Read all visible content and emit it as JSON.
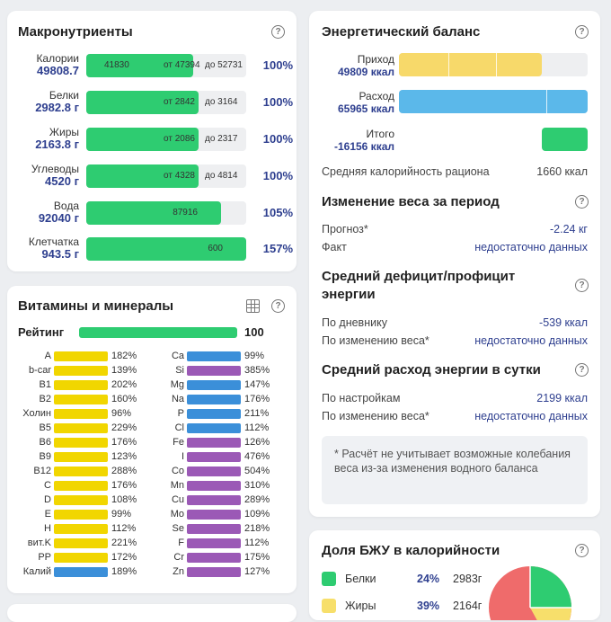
{
  "macros": {
    "title": "Макронутриенты",
    "rows": [
      {
        "name": "Калории",
        "value": "49808.7",
        "fill": 0.67,
        "inner": "41830",
        "from": "от 47394",
        "to": "до 52731",
        "pct": "100%"
      },
      {
        "name": "Белки",
        "value": "2982.8 г",
        "fill": 0.7,
        "inner": "",
        "from": "от 2842",
        "to": "до 3164",
        "pct": "100%"
      },
      {
        "name": "Жиры",
        "value": "2163.8 г",
        "fill": 0.7,
        "inner": "",
        "from": "от 2086",
        "to": "до 2317",
        "pct": "100%"
      },
      {
        "name": "Углеводы",
        "value": "4520 г",
        "fill": 0.7,
        "inner": "",
        "from": "от 4328",
        "to": "до 4814",
        "pct": "100%"
      },
      {
        "name": "Вода",
        "value": "92040 г",
        "fill": 0.84,
        "inner": "87916",
        "from": "",
        "to": "",
        "pct": "105%"
      },
      {
        "name": "Клетчатка",
        "value": "943.5 г",
        "fill": 1.0,
        "inner": "600",
        "from": "",
        "to": "",
        "pct": "157%"
      }
    ]
  },
  "vitamins": {
    "title": "Витамины и минералы",
    "rating_label": "Рейтинг",
    "rating_value": "100",
    "colors": {
      "yellow": "#f1d600",
      "blue": "#3b8fd9",
      "purple": "#9b59b6"
    },
    "left": [
      {
        "name": "A",
        "pct": "182%",
        "color": "yellow"
      },
      {
        "name": "b-car",
        "pct": "139%",
        "color": "yellow"
      },
      {
        "name": "B1",
        "pct": "202%",
        "color": "yellow"
      },
      {
        "name": "B2",
        "pct": "160%",
        "color": "yellow"
      },
      {
        "name": "Холин",
        "pct": "96%",
        "color": "yellow"
      },
      {
        "name": "B5",
        "pct": "229%",
        "color": "yellow"
      },
      {
        "name": "B6",
        "pct": "176%",
        "color": "yellow"
      },
      {
        "name": "B9",
        "pct": "123%",
        "color": "yellow"
      },
      {
        "name": "B12",
        "pct": "288%",
        "color": "yellow"
      },
      {
        "name": "C",
        "pct": "176%",
        "color": "yellow"
      },
      {
        "name": "D",
        "pct": "108%",
        "color": "yellow"
      },
      {
        "name": "E",
        "pct": "99%",
        "color": "yellow"
      },
      {
        "name": "H",
        "pct": "112%",
        "color": "yellow"
      },
      {
        "name": "вит.K",
        "pct": "221%",
        "color": "yellow"
      },
      {
        "name": "PP",
        "pct": "172%",
        "color": "yellow"
      },
      {
        "name": "Калий",
        "pct": "189%",
        "color": "blue"
      }
    ],
    "right": [
      {
        "name": "Ca",
        "pct": "99%",
        "color": "blue"
      },
      {
        "name": "Si",
        "pct": "385%",
        "color": "purple"
      },
      {
        "name": "Mg",
        "pct": "147%",
        "color": "blue"
      },
      {
        "name": "Na",
        "pct": "176%",
        "color": "blue"
      },
      {
        "name": "P",
        "pct": "211%",
        "color": "blue"
      },
      {
        "name": "Cl",
        "pct": "112%",
        "color": "blue"
      },
      {
        "name": "Fe",
        "pct": "126%",
        "color": "purple"
      },
      {
        "name": "I",
        "pct": "476%",
        "color": "purple"
      },
      {
        "name": "Co",
        "pct": "504%",
        "color": "purple"
      },
      {
        "name": "Mn",
        "pct": "310%",
        "color": "purple"
      },
      {
        "name": "Cu",
        "pct": "289%",
        "color": "purple"
      },
      {
        "name": "Mo",
        "pct": "109%",
        "color": "purple"
      },
      {
        "name": "Se",
        "pct": "218%",
        "color": "purple"
      },
      {
        "name": "F",
        "pct": "112%",
        "color": "purple"
      },
      {
        "name": "Cr",
        "pct": "175%",
        "color": "purple"
      },
      {
        "name": "Zn",
        "pct": "127%",
        "color": "purple"
      }
    ]
  },
  "energy": {
    "title": "Энергетический баланс",
    "income_label": "Приход",
    "income_value": "49809 ккал",
    "expense_label": "Расход",
    "expense_value": "65965 ккал",
    "total_label": "Итого",
    "total_value": "-16156 ккал",
    "avg_label": "Средняя калорийность рациона",
    "avg_value": "1660 ккал",
    "weight_title": "Изменение веса за период",
    "forecast_label": "Прогноз*",
    "forecast_value": "-2.24 кг",
    "fact_label": "Факт",
    "fact_value": "недостаточно данных",
    "deficit_title": "Средний дефицит/профицит энергии",
    "by_diary_label": "По дневнику",
    "by_diary_value": "-539 ккал",
    "by_weight_label": "По изменению веса*",
    "by_weight_value": "недостаточно данных",
    "expense_title": "Средний расход энергии в сутки",
    "by_settings_label": "По настройкам",
    "by_settings_value": "2199 ккал",
    "by_weight2_label": "По изменению веса*",
    "by_weight2_value": "недостаточно данных",
    "note": "* Расчёт не учитывает возможные колебания веса из-за изменения водного баланса"
  },
  "bju": {
    "title": "Доля БЖУ в калорийности",
    "items": [
      {
        "name": "Белки",
        "pct": "24%",
        "grams": "2983г",
        "color": "#2ecc71"
      },
      {
        "name": "Жиры",
        "pct": "39%",
        "grams": "2164г",
        "color": "#f7df6b"
      }
    ]
  },
  "colors": {
    "green": "#2ecc71",
    "yellow": "#f7d96a",
    "blue": "#5bb8ea",
    "navy": "#2e3f8f",
    "red": "#ef6b6b"
  }
}
